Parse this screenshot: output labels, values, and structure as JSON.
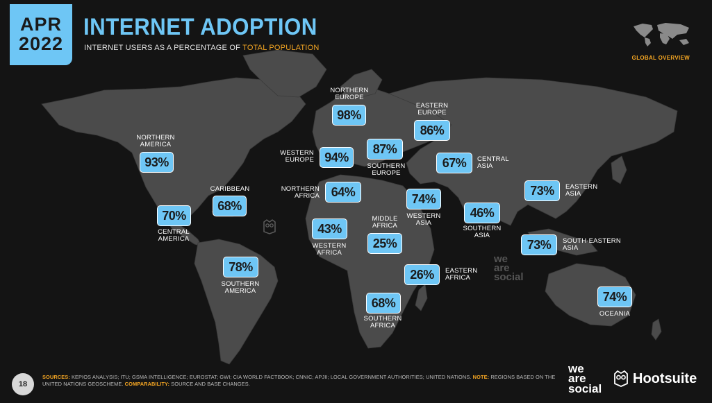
{
  "header": {
    "month": "APR",
    "year": "2022",
    "title": "INTERNET ADOPTION",
    "subtitle_prefix": "INTERNET USERS AS A PERCENTAGE OF ",
    "subtitle_highlight": "TOTAL POPULATION",
    "overview_label": "GLOBAL OVERVIEW"
  },
  "regions": {
    "northern_america": {
      "line1": "NORTHERN",
      "line2": "AMERICA",
      "value": "93%"
    },
    "caribbean": {
      "line1": "CARIBBEAN",
      "value": "68%"
    },
    "central_america": {
      "line1": "CENTRAL",
      "line2": "AMERICA",
      "value": "70%"
    },
    "southern_america": {
      "line1": "SOUTHERN",
      "line2": "AMERICA",
      "value": "78%"
    },
    "northern_europe": {
      "line1": "NORTHERN",
      "line2": "EUROPE",
      "value": "98%"
    },
    "western_europe": {
      "line1": "WESTERN",
      "line2": "EUROPE",
      "value": "94%"
    },
    "southern_europe": {
      "line1": "SOUTHERN",
      "line2": "EUROPE",
      "value": "87%"
    },
    "eastern_europe": {
      "line1": "EASTERN",
      "line2": "EUROPE",
      "value": "86%"
    },
    "central_asia": {
      "line1": "CENTRAL",
      "line2": "ASIA",
      "value": "67%"
    },
    "northern_africa": {
      "line1": "NORTHERN",
      "line2": "AFRICA",
      "value": "64%"
    },
    "western_asia": {
      "line1": "WESTERN",
      "line2": "ASIA",
      "value": "74%"
    },
    "southern_asia": {
      "line1": "SOUTHERN",
      "line2": "ASIA",
      "value": "46%"
    },
    "eastern_asia": {
      "line1": "EASTERN",
      "line2": "ASIA",
      "value": "73%"
    },
    "western_africa": {
      "line1": "WESTERN",
      "line2": "AFRICA",
      "value": "43%"
    },
    "middle_africa": {
      "line1": "MIDDLE",
      "line2": "AFRICA",
      "value": "25%"
    },
    "south_eastern_asia": {
      "line1": "SOUTH-EASTERN",
      "line2": "ASIA",
      "value": "73%"
    },
    "eastern_africa": {
      "line1": "EASTERN",
      "line2": "AFRICA",
      "value": "26%"
    },
    "southern_africa": {
      "line1": "SOUTHERN",
      "line2": "AFRICA",
      "value": "68%"
    },
    "oceania": {
      "line1": "OCEANIA",
      "value": "74%"
    }
  },
  "watermark": {
    "line1": "we",
    "line2": "are",
    "line3": "social"
  },
  "footer": {
    "page_number": "18",
    "sources_key": "SOURCES:",
    "sources_text": " KEPIOS ANALYSIS; ITU; GSMA INTELLIGENCE; EUROSTAT; GWI; CIA WORLD FACTBOOK; CNNIC; APJII; LOCAL GOVERNMENT AUTHORITIES; UNITED NATIONS. ",
    "note_key": "NOTE:",
    "note_text": " REGIONS BASED ON THE UNITED NATIONS GEOSCHEME. ",
    "comparability_key": "COMPARABILITY:",
    "comparability_text": " SOURCE AND BASE CHANGES.",
    "brand_we": "we",
    "brand_are": "are",
    "brand_social": "social",
    "brand_hootsuite": "Hootsuite"
  },
  "colors": {
    "accent": "#6ec6f5",
    "highlight": "#f5a623",
    "land": "#4a4a4a",
    "background": "#141414"
  }
}
